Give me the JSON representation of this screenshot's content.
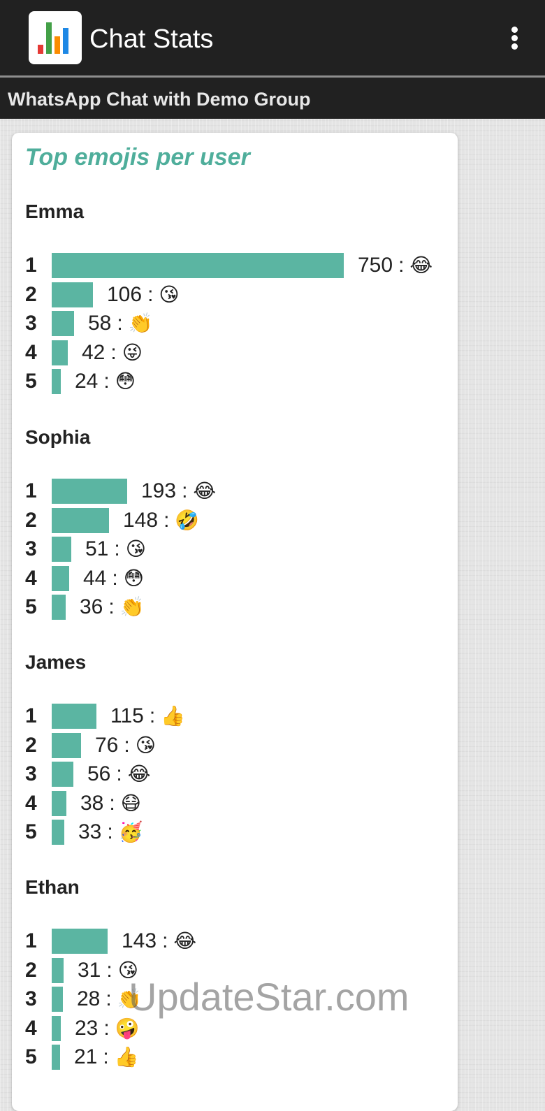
{
  "app_bar": {
    "title": "Chat Stats",
    "logo_icon": "bar-chart-logo-icon",
    "menu_icon": "more-vert-icon"
  },
  "sub_header": {
    "title": "WhatsApp Chat with Demo Group"
  },
  "card": {
    "title": "Top emojis per user",
    "bar_color": "#5bb5a2",
    "title_color": "#4fae9b"
  },
  "chart_data": {
    "type": "bar",
    "title": "Top emojis per user",
    "orientation": "horizontal",
    "xlim": [
      0,
      750
    ],
    "users": [
      {
        "name": "Emma",
        "entries": [
          {
            "rank": "1",
            "count": 750,
            "emoji": "😂"
          },
          {
            "rank": "2",
            "count": 106,
            "emoji": "😘"
          },
          {
            "rank": "3",
            "count": 58,
            "emoji": "👏"
          },
          {
            "rank": "4",
            "count": 42,
            "emoji": "😜"
          },
          {
            "rank": "5",
            "count": 24,
            "emoji": "😳"
          }
        ]
      },
      {
        "name": "Sophia",
        "entries": [
          {
            "rank": "1",
            "count": 193,
            "emoji": "😂"
          },
          {
            "rank": "2",
            "count": 148,
            "emoji": "🤣"
          },
          {
            "rank": "3",
            "count": 51,
            "emoji": "😘"
          },
          {
            "rank": "4",
            "count": 44,
            "emoji": "😳"
          },
          {
            "rank": "5",
            "count": 36,
            "emoji": "👏"
          }
        ]
      },
      {
        "name": "James",
        "entries": [
          {
            "rank": "1",
            "count": 115,
            "emoji": "👍"
          },
          {
            "rank": "2",
            "count": 76,
            "emoji": "😘"
          },
          {
            "rank": "3",
            "count": 56,
            "emoji": "😂"
          },
          {
            "rank": "4",
            "count": 38,
            "emoji": "😷"
          },
          {
            "rank": "5",
            "count": 33,
            "emoji": "🥳"
          }
        ]
      },
      {
        "name": "Ethan",
        "entries": [
          {
            "rank": "1",
            "count": 143,
            "emoji": "😂"
          },
          {
            "rank": "2",
            "count": 31,
            "emoji": "😘"
          },
          {
            "rank": "3",
            "count": 28,
            "emoji": "👏"
          },
          {
            "rank": "4",
            "count": 23,
            "emoji": "🤪"
          },
          {
            "rank": "5",
            "count": 21,
            "emoji": "👍"
          }
        ]
      }
    ]
  },
  "watermark": {
    "text": "UpdateStar.com"
  }
}
